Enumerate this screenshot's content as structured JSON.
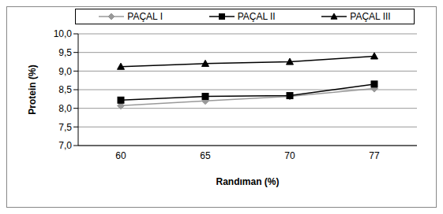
{
  "chart_data": {
    "type": "line",
    "x_label": "Randıman (%)",
    "y_label": "Protein (%)",
    "categories": [
      "60",
      "65",
      "70",
      "77"
    ],
    "series": [
      {
        "name": "PAÇAL I",
        "color": "#999999",
        "marker": "diamond",
        "values": [
          8.07,
          8.2,
          8.32,
          8.53
        ]
      },
      {
        "name": "PAÇAL II",
        "color": "#000000",
        "marker": "square",
        "values": [
          8.22,
          8.32,
          8.34,
          8.65
        ]
      },
      {
        "name": "PAÇAL III",
        "color": "#000000",
        "marker": "triangle",
        "values": [
          9.12,
          9.2,
          9.25,
          9.4
        ]
      }
    ],
    "ylim": [
      7,
      10
    ],
    "yticks": [
      {
        "value": 7,
        "label": "7,0"
      },
      {
        "value": 7.5,
        "label": "7,5"
      },
      {
        "value": 8,
        "label": "8,0"
      },
      {
        "value": 8.5,
        "label": "8,5"
      },
      {
        "value": 9,
        "label": "9,0"
      },
      {
        "value": 9.5,
        "label": "9,5"
      },
      {
        "value": 10,
        "label": "10,0"
      }
    ],
    "grid": true,
    "legend": "top"
  }
}
